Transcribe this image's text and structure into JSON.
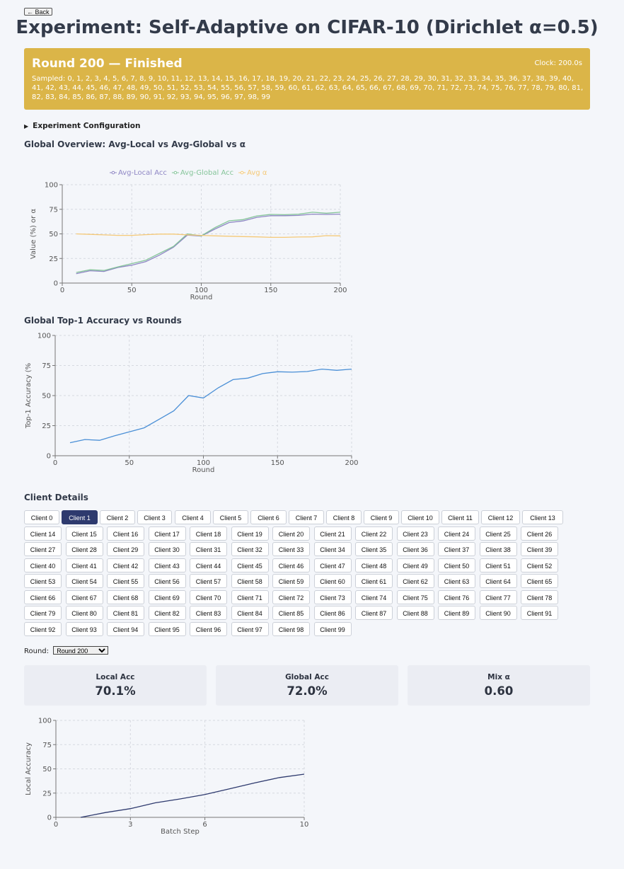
{
  "nav": {
    "back_label": "← Back"
  },
  "page": {
    "title": "Experiment: Self-Adaptive on CIFAR-10 (Dirichlet α=0.5)"
  },
  "status": {
    "round_label": "Round 200 — Finished",
    "clock": "Clock: 200.0s",
    "sampled": "Sampled: 0, 1, 2, 3, 4, 5, 6, 7, 8, 9, 10, 11, 12, 13, 14, 15, 16, 17, 18, 19, 20, 21, 22, 23, 24, 25, 26, 27, 28, 29, 30, 31, 32, 33, 34, 35, 36, 37, 38, 39, 40, 41, 42, 43, 44, 45, 46, 47, 48, 49, 50, 51, 52, 53, 54, 55, 56, 57, 58, 59, 60, 61, 62, 63, 64, 65, 66, 67, 68, 69, 70, 71, 72, 73, 74, 75, 76, 77, 78, 79, 80, 81, 82, 83, 84, 85, 86, 87, 88, 89, 90, 91, 92, 93, 94, 95, 96, 97, 98, 99",
    "color": "#dbb548"
  },
  "config": {
    "label": "Experiment Configuration",
    "expanded": false
  },
  "sections": {
    "overview_title": "Global Overview: Avg-Local vs Avg-Global vs α",
    "top1_title": "Global Top-1 Accuracy vs Rounds",
    "clients_title": "Client Details"
  },
  "client_tabs": {
    "labels": [
      "Client 0",
      "Client 1",
      "Client 2",
      "Client 3",
      "Client 4",
      "Client 5",
      "Client 6",
      "Client 7",
      "Client 8",
      "Client 9",
      "Client 10",
      "Client 11",
      "Client 12",
      "Client 13",
      "Client 14",
      "Client 15",
      "Client 16",
      "Client 17",
      "Client 18",
      "Client 19",
      "Client 20",
      "Client 21",
      "Client 22",
      "Client 23",
      "Client 24",
      "Client 25",
      "Client 26",
      "Client 27",
      "Client 28",
      "Client 29",
      "Client 30",
      "Client 31",
      "Client 32",
      "Client 33",
      "Client 34",
      "Client 35",
      "Client 36",
      "Client 37",
      "Client 38",
      "Client 39",
      "Client 40",
      "Client 41",
      "Client 42",
      "Client 43",
      "Client 44",
      "Client 45",
      "Client 46",
      "Client 47",
      "Client 48",
      "Client 49",
      "Client 50",
      "Client 51",
      "Client 52",
      "Client 53",
      "Client 54",
      "Client 55",
      "Client 56",
      "Client 57",
      "Client 58",
      "Client 59",
      "Client 60",
      "Client 61",
      "Client 62",
      "Client 63",
      "Client 64",
      "Client 65",
      "Client 66",
      "Client 67",
      "Client 68",
      "Client 69",
      "Client 70",
      "Client 71",
      "Client 72",
      "Client 73",
      "Client 74",
      "Client 75",
      "Client 76",
      "Client 77",
      "Client 78",
      "Client 79",
      "Client 80",
      "Client 81",
      "Client 82",
      "Client 83",
      "Client 84",
      "Client 85",
      "Client 86",
      "Client 87",
      "Client 88",
      "Client 89",
      "Client 90",
      "Client 91",
      "Client 92",
      "Client 93",
      "Client 94",
      "Client 95",
      "Client 96",
      "Client 97",
      "Client 98",
      "Client 99"
    ],
    "active_index": 1,
    "active_color": "#2e3a6e"
  },
  "round_select": {
    "label": "Round:",
    "selected": "Round 200"
  },
  "metrics": [
    {
      "label": "Local Acc",
      "value": "70.1%"
    },
    {
      "label": "Global Acc",
      "value": "72.0%"
    },
    {
      "label": "Mix α",
      "value": "0.60"
    }
  ],
  "chart_data": [
    {
      "id": "overview",
      "type": "line",
      "title": "",
      "xlabel": "Round",
      "ylabel": "Value (%) or α",
      "xlim": [
        0,
        200
      ],
      "ylim": [
        0,
        100
      ],
      "xticks": [
        0,
        50,
        100,
        150,
        200
      ],
      "yticks": [
        0,
        25,
        50,
        75,
        100
      ],
      "grid": true,
      "legend": "top",
      "x": [
        10,
        20,
        30,
        40,
        50,
        60,
        70,
        80,
        90,
        100,
        110,
        120,
        130,
        140,
        150,
        160,
        170,
        180,
        190,
        200
      ],
      "series": [
        {
          "name": "Avg-Local Acc",
          "color": "#8e86c4",
          "values": [
            9.5,
            12.5,
            11.8,
            15.8,
            18.2,
            21.8,
            28.5,
            36.5,
            48.8,
            47.8,
            55.0,
            61.5,
            63.2,
            66.8,
            68.5,
            68.5,
            68.8,
            70.1,
            69.8,
            70.1
          ]
        },
        {
          "name": "Avg-Global Acc",
          "color": "#86c59a",
          "values": [
            10.8,
            13.5,
            12.8,
            16.5,
            19.8,
            23.2,
            30.2,
            37.3,
            50.0,
            48.0,
            56.5,
            63.3,
            64.5,
            68.3,
            69.8,
            69.5,
            70.0,
            72.0,
            71.0,
            72.0
          ]
        },
        {
          "name": "Avg α",
          "color": "#f5c977",
          "values": [
            50.0,
            49.5,
            49.0,
            48.5,
            48.5,
            49.2,
            49.8,
            49.8,
            49.0,
            48.5,
            48.0,
            47.6,
            47.3,
            47.0,
            46.5,
            46.5,
            46.8,
            47.0,
            48.2,
            48.0
          ]
        }
      ]
    },
    {
      "id": "top1",
      "type": "line",
      "title": "",
      "xlabel": "Round",
      "ylabel": "Top-1 Accuracy (%",
      "xlim": [
        0,
        200
      ],
      "ylim": [
        0,
        100
      ],
      "xticks": [
        0,
        50,
        100,
        150,
        200
      ],
      "yticks": [
        0,
        25,
        50,
        75,
        100
      ],
      "grid": true,
      "x": [
        10,
        20,
        30,
        40,
        50,
        60,
        70,
        80,
        90,
        100,
        110,
        120,
        130,
        140,
        150,
        160,
        170,
        180,
        190,
        200
      ],
      "series": [
        {
          "color": "#4a8fd6",
          "values": [
            10.8,
            13.5,
            12.8,
            16.5,
            19.8,
            23.2,
            30.2,
            37.3,
            50.0,
            48.0,
            56.5,
            63.3,
            64.5,
            68.3,
            69.8,
            69.5,
            70.0,
            72.0,
            71.0,
            72.0
          ]
        }
      ]
    },
    {
      "id": "client_local",
      "type": "line",
      "title": "",
      "xlabel": "Batch Step",
      "ylabel": "Local Accuracy",
      "xlim": [
        0,
        10
      ],
      "ylim": [
        0,
        100
      ],
      "xticks": [
        0,
        3,
        6,
        10
      ],
      "yticks": [
        0,
        25,
        50,
        75,
        100
      ],
      "grid": true,
      "x": [
        1,
        2,
        3,
        4,
        5,
        6,
        7,
        8,
        9,
        10
      ],
      "series": [
        {
          "color": "#2e3a6e",
          "values": [
            0.0,
            5.0,
            9.0,
            15.0,
            19.0,
            23.5,
            29.5,
            35.5,
            41.0,
            44.5
          ]
        }
      ]
    }
  ]
}
